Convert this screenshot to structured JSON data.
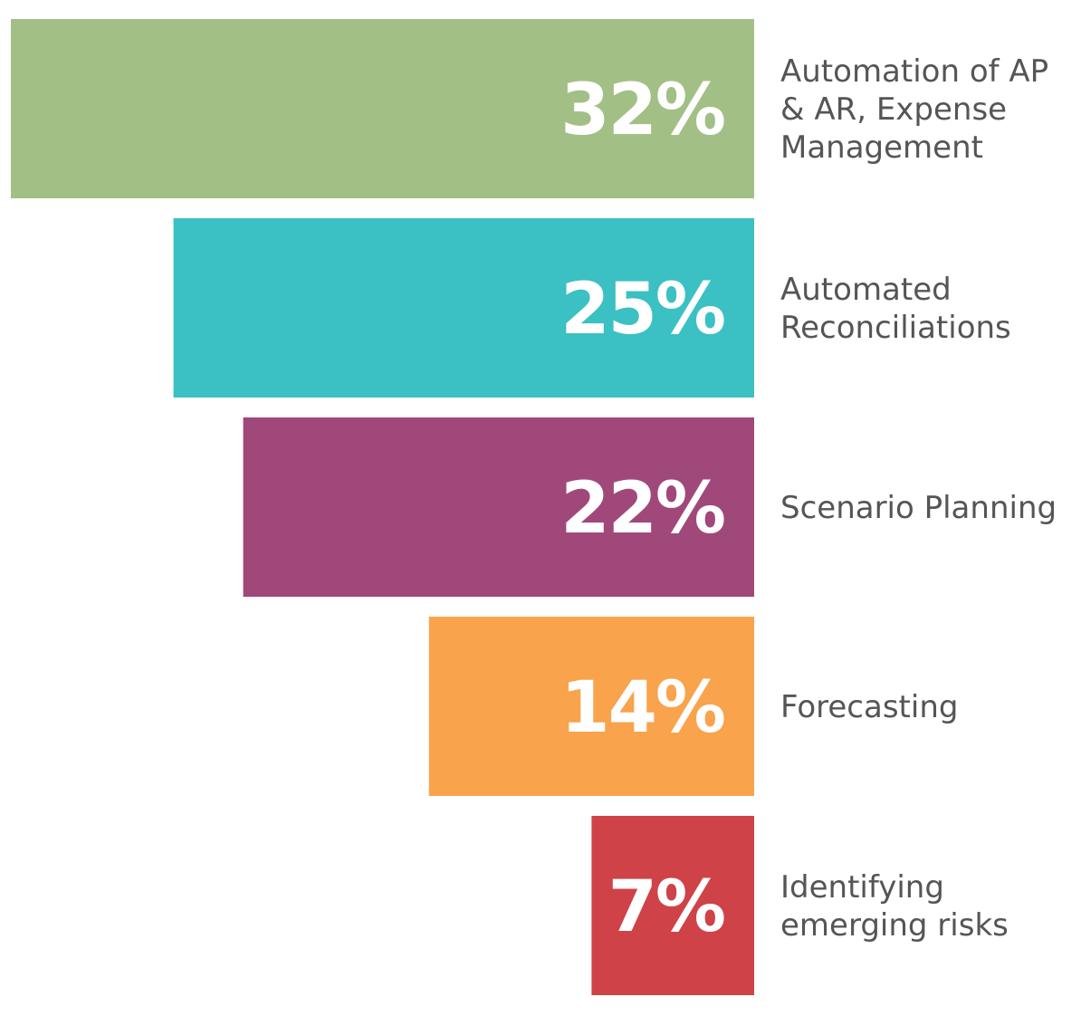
{
  "chart_data": {
    "type": "bar",
    "orientation": "horizontal",
    "title": "",
    "xlabel": "",
    "ylabel": "",
    "unit": "%",
    "xlim": [
      0,
      32
    ],
    "categories": [
      "Automation of AP & AR, Expense Management",
      "Automated Reconciliations",
      "Scenario Planning",
      "Forecasting",
      "Identifying emerging risks"
    ],
    "category_lines": [
      [
        "Automation of AP",
        "& AR, Expense",
        "Management"
      ],
      [
        "Automated",
        "Reconciliations"
      ],
      [
        "Scenario Planning"
      ],
      [
        "Forecasting"
      ],
      [
        "Identifying",
        "emerging risks"
      ]
    ],
    "values": [
      32,
      25,
      22,
      14,
      7
    ],
    "value_labels": [
      "32%",
      "25%",
      "22%",
      "14%",
      "7%"
    ],
    "colors": [
      "#a2c086",
      "#3bc0c3",
      "#a1487a",
      "#f9a34c",
      "#cf4248"
    ]
  }
}
